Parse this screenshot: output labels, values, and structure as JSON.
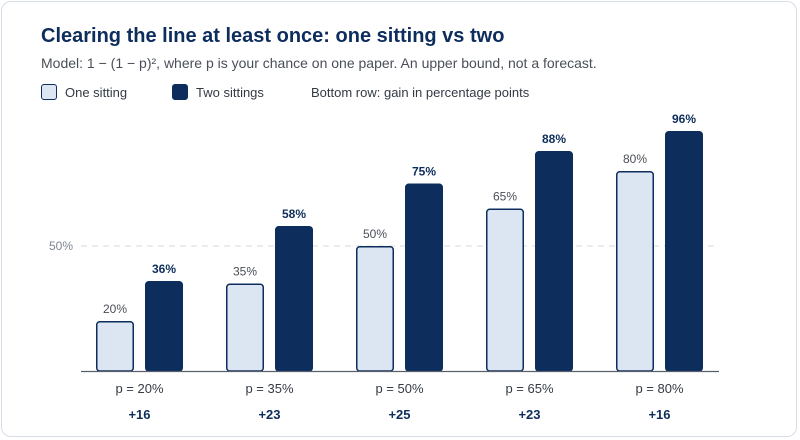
{
  "title": "Clearing the line at least once: one sitting vs two",
  "subtitle": "Model: 1 − (1 − p)², where p is your chance on one paper. An upper bound, not a forecast.",
  "legend": {
    "one": "One sitting",
    "two": "Two sittings",
    "note": "Bottom row: gain in percentage points"
  },
  "colors": {
    "one_fill": "#dce5f2",
    "one_stroke": "#0d2d5c",
    "two_fill": "#0d2d5c",
    "ref_line": "#d4d9e0"
  },
  "chart_data": {
    "type": "bar",
    "categories": [
      "p = 20%",
      "p = 35%",
      "p = 50%",
      "p = 65%",
      "p = 80%"
    ],
    "series": [
      {
        "name": "One sitting",
        "values": [
          20,
          35,
          50,
          65,
          80
        ],
        "labels": [
          "20%",
          "35%",
          "50%",
          "65%",
          "80%"
        ]
      },
      {
        "name": "Two sittings",
        "values": [
          36,
          58,
          75,
          88,
          96
        ],
        "labels": [
          "36%",
          "58%",
          "75%",
          "88%",
          "96%"
        ]
      }
    ],
    "gains": [
      "+16",
      "+23",
      "+25",
      "+23",
      "+16"
    ],
    "reference_line": {
      "value": 50,
      "label": "50%"
    },
    "ylim": [
      0,
      100
    ],
    "grid": false,
    "legend_position": "top-left"
  }
}
